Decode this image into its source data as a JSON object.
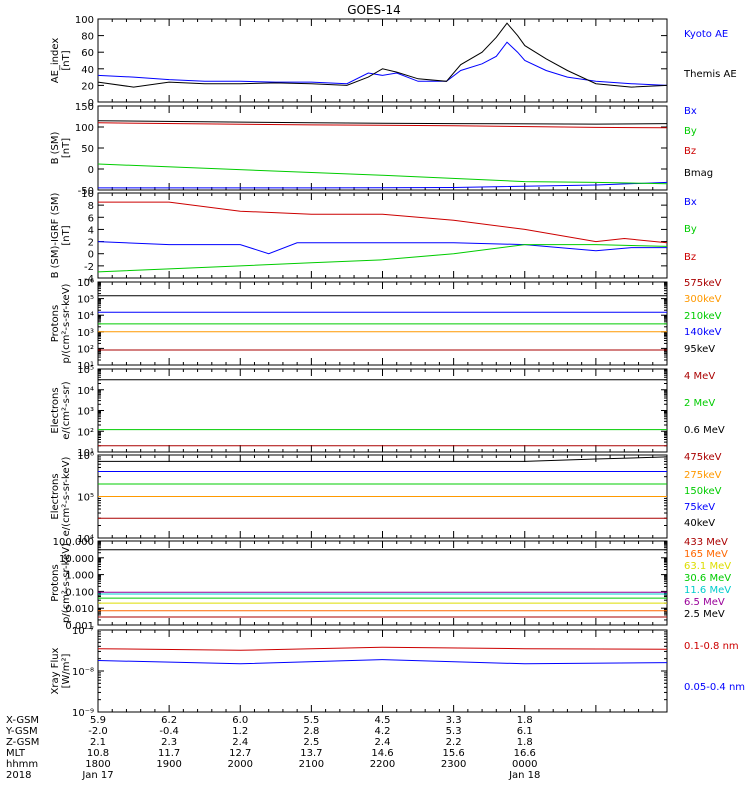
{
  "title": "GOES-14",
  "colors": {
    "black": "#000000",
    "blue": "#0000ff",
    "red": "#cc0000",
    "darkred": "#aa0000",
    "green": "#00cc00",
    "orange": "#ff9900",
    "yellow": "#dddd00",
    "cyan": "#00cccc",
    "purple": "#990099"
  },
  "chart_data": [
    {
      "type": "line",
      "id": "ae",
      "ylabel": [
        "AE_index",
        "[nT]"
      ],
      "ylim": [
        0,
        100
      ],
      "yscale": "linear",
      "yticks": [
        0,
        20,
        40,
        60,
        80,
        100
      ],
      "yticklabels": [
        "0",
        "20",
        "40",
        "60",
        "80",
        "100"
      ],
      "series": [
        {
          "name": "Kyoto AE",
          "color": "#0000ff",
          "points": [
            [
              0,
              32
            ],
            [
              0.5,
              30
            ],
            [
              1,
              27
            ],
            [
              1.5,
              25
            ],
            [
              2,
              25
            ],
            [
              2.5,
              24
            ],
            [
              3,
              24
            ],
            [
              3.5,
              22
            ],
            [
              3.8,
              35
            ],
            [
              4,
              32
            ],
            [
              4.2,
              35
            ],
            [
              4.5,
              25
            ],
            [
              4.9,
              25
            ],
            [
              5.1,
              38
            ],
            [
              5.4,
              46
            ],
            [
              5.6,
              55
            ],
            [
              5.75,
              72
            ],
            [
              5.9,
              60
            ],
            [
              6,
              50
            ],
            [
              6.3,
              38
            ],
            [
              6.6,
              30
            ],
            [
              7,
              25
            ],
            [
              7.5,
              22
            ],
            [
              8,
              20
            ]
          ]
        },
        {
          "name": "Themis AE",
          "color": "#000000",
          "points": [
            [
              0,
              24
            ],
            [
              0.5,
              18
            ],
            [
              1,
              24
            ],
            [
              1.5,
              22
            ],
            [
              2,
              22
            ],
            [
              2.5,
              23
            ],
            [
              3,
              22
            ],
            [
              3.5,
              20
            ],
            [
              3.8,
              30
            ],
            [
              4,
              40
            ],
            [
              4.2,
              36
            ],
            [
              4.5,
              28
            ],
            [
              4.9,
              25
            ],
            [
              5.1,
              45
            ],
            [
              5.4,
              60
            ],
            [
              5.6,
              78
            ],
            [
              5.75,
              95
            ],
            [
              5.9,
              80
            ],
            [
              6,
              68
            ],
            [
              6.3,
              52
            ],
            [
              6.6,
              38
            ],
            [
              7,
              22
            ],
            [
              7.5,
              18
            ],
            [
              8,
              20
            ]
          ]
        }
      ]
    },
    {
      "type": "line",
      "id": "bsm",
      "ylabel": [
        "B (SM)",
        "[nT]"
      ],
      "ylim": [
        -50,
        150
      ],
      "yscale": "linear",
      "yticks": [
        -50,
        0,
        50,
        100,
        150
      ],
      "yticklabels": [
        "-50",
        "0",
        "50",
        "100",
        "150"
      ],
      "series": [
        {
          "name": "Bx",
          "color": "#0000ff",
          "points": [
            [
              0,
              -45
            ],
            [
              3,
              -45
            ],
            [
              5,
              -44
            ],
            [
              7,
              -38
            ],
            [
              8,
              -32
            ]
          ]
        },
        {
          "name": "By",
          "color": "#00cc00",
          "points": [
            [
              0,
              12
            ],
            [
              4,
              -15
            ],
            [
              6,
              -30
            ],
            [
              7,
              -32
            ],
            [
              8,
              -35
            ]
          ]
        },
        {
          "name": "Bz",
          "color": "#cc0000",
          "points": [
            [
              0,
              110
            ],
            [
              3,
              105
            ],
            [
              5,
              103
            ],
            [
              7,
              99
            ],
            [
              8,
              98
            ]
          ]
        },
        {
          "name": "Bmag",
          "color": "#000000",
          "points": [
            [
              0,
              115
            ],
            [
              3,
              110
            ],
            [
              5,
              108
            ],
            [
              7,
              107
            ],
            [
              8,
              108
            ]
          ]
        }
      ]
    },
    {
      "type": "line",
      "id": "bigrf",
      "ylabel": [
        "B (SM)-IGRF (SM)",
        "[nT]"
      ],
      "ylim": [
        -4,
        10
      ],
      "yscale": "linear",
      "yticks": [
        -4,
        -2,
        0,
        2,
        4,
        6,
        8,
        10
      ],
      "yticklabels": [
        "-4",
        "-2",
        "0",
        "2",
        "4",
        "6",
        "8",
        "10"
      ],
      "series": [
        {
          "name": "Bx",
          "color": "#0000ff",
          "points": [
            [
              0,
              2
            ],
            [
              1,
              1.5
            ],
            [
              2,
              1.5
            ],
            [
              2.4,
              0
            ],
            [
              2.8,
              1.8
            ],
            [
              4,
              1.8
            ],
            [
              5,
              1.8
            ],
            [
              6,
              1.5
            ],
            [
              7,
              0.5
            ],
            [
              7.5,
              1
            ],
            [
              8,
              1
            ]
          ]
        },
        {
          "name": "By",
          "color": "#00cc00",
          "points": [
            [
              0,
              -3
            ],
            [
              1,
              -2.5
            ],
            [
              2,
              -2
            ],
            [
              3,
              -1.5
            ],
            [
              4,
              -1
            ],
            [
              5,
              0
            ],
            [
              6,
              1.5
            ],
            [
              7,
              1.5
            ],
            [
              8,
              1.2
            ]
          ]
        },
        {
          "name": "Bz",
          "color": "#cc0000",
          "points": [
            [
              0,
              8.5
            ],
            [
              1,
              8.5
            ],
            [
              2,
              7
            ],
            [
              3,
              6.5
            ],
            [
              4,
              6.5
            ],
            [
              5,
              5.5
            ],
            [
              6,
              4
            ],
            [
              7,
              2
            ],
            [
              7.4,
              2.5
            ],
            [
              8,
              1.8
            ]
          ]
        }
      ]
    },
    {
      "type": "line",
      "id": "protons1",
      "ylabel": [
        "Protons",
        "p/(cm²-s-sr-keV)"
      ],
      "ylim": [
        10,
        1000000
      ],
      "yscale": "log",
      "yticks": [
        10,
        100,
        1000,
        10000,
        100000,
        1000000
      ],
      "yticklabels": [
        "10¹",
        "10²",
        "10³",
        "10⁴",
        "10⁵",
        "10⁶"
      ],
      "series": [
        {
          "name": "575keV",
          "color": "#aa0000",
          "points": [
            [
              0,
              80
            ],
            [
              8,
              80
            ]
          ]
        },
        {
          "name": "300keV",
          "color": "#ff9900",
          "points": [
            [
              0,
              1000
            ],
            [
              8,
              1000
            ]
          ]
        },
        {
          "name": "210keV",
          "color": "#00cc00",
          "points": [
            [
              0,
              3000
            ],
            [
              8,
              3000
            ]
          ]
        },
        {
          "name": "140keV",
          "color": "#0000ff",
          "points": [
            [
              0,
              15000
            ],
            [
              8,
              15000
            ]
          ]
        },
        {
          "name": "95keV",
          "color": "#000000",
          "points": [
            [
              0,
              150000
            ],
            [
              8,
              150000
            ]
          ]
        }
      ]
    },
    {
      "type": "line",
      "id": "electrons1",
      "ylabel": [
        "Electrons",
        "e/(cm²-s-sr)"
      ],
      "ylim": [
        10,
        100000
      ],
      "yscale": "log",
      "yticks": [
        10,
        100,
        1000,
        10000,
        100000
      ],
      "yticklabels": [
        "10¹",
        "10²",
        "10³",
        "10⁴",
        "10⁵"
      ],
      "series": [
        {
          "name": "4 MeV",
          "color": "#aa0000",
          "points": [
            [
              0,
              20
            ],
            [
              8,
              20
            ]
          ]
        },
        {
          "name": "2 MeV",
          "color": "#00cc00",
          "points": [
            [
              0,
              120
            ],
            [
              8,
              120
            ]
          ]
        },
        {
          "name": "0.6 MeV",
          "color": "#000000",
          "points": [
            [
              0,
              30000
            ],
            [
              8,
              30000
            ]
          ]
        }
      ]
    },
    {
      "type": "line",
      "id": "electrons2",
      "ylabel": [
        "Electrons",
        "e/(cm²-s-sr-keV)"
      ],
      "ylim": [
        10000,
        1000000
      ],
      "yscale": "log",
      "yticks": [
        10000,
        100000,
        1000000
      ],
      "yticklabels": [
        "10⁴",
        "10⁵",
        "10⁶"
      ],
      "series": [
        {
          "name": "475keV",
          "color": "#aa0000",
          "points": [
            [
              0,
              30000
            ],
            [
              8,
              30000
            ]
          ]
        },
        {
          "name": "275keV",
          "color": "#ff9900",
          "points": [
            [
              0,
              100000
            ],
            [
              8,
              100000
            ]
          ]
        },
        {
          "name": "150keV",
          "color": "#00cc00",
          "points": [
            [
              0,
              200000
            ],
            [
              8,
              200000
            ]
          ]
        },
        {
          "name": "75keV",
          "color": "#0000ff",
          "points": [
            [
              0,
              400000
            ],
            [
              8,
              400000
            ]
          ]
        },
        {
          "name": "40keV",
          "color": "#000000",
          "points": [
            [
              0,
              700000
            ],
            [
              6,
              700000
            ],
            [
              7,
              800000
            ],
            [
              8,
              900000
            ]
          ]
        }
      ]
    },
    {
      "type": "line",
      "id": "protons2",
      "ylabel": [
        "Protons",
        "p/(cm²-s-sr-keV)"
      ],
      "ylim": [
        0.001,
        100
      ],
      "yscale": "log",
      "yticks": [
        0.001,
        0.01,
        0.1,
        1,
        10,
        100
      ],
      "yticklabels": [
        "0.001",
        "0.010",
        "0.100",
        "1.000",
        "10.000",
        "100.000"
      ],
      "series": [
        {
          "name": "433 MeV",
          "color": "#aa0000",
          "points": [
            [
              0,
              0.003
            ],
            [
              8,
              0.003
            ]
          ]
        },
        {
          "name": "165 MeV",
          "color": "#ff6600",
          "points": [
            [
              0,
              0.007
            ],
            [
              8,
              0.007
            ]
          ]
        },
        {
          "name": "63.1 MeV",
          "color": "#dddd00",
          "points": [
            [
              0,
              0.02
            ],
            [
              8,
              0.02
            ]
          ]
        },
        {
          "name": "30.6 MeV",
          "color": "#00cc00",
          "points": [
            [
              0,
              0.04
            ],
            [
              8,
              0.04
            ]
          ]
        },
        {
          "name": "11.6 MeV",
          "color": "#00cccc",
          "points": [
            [
              0,
              0.07
            ],
            [
              8,
              0.07
            ]
          ]
        },
        {
          "name": "6.5 MeV",
          "color": "#990099",
          "points": [
            [
              0,
              0.09
            ],
            [
              8,
              0.09
            ]
          ]
        },
        {
          "name": "2.5 MeV",
          "color": "#000000",
          "points": [
            [
              0,
              30
            ],
            [
              8,
              30
            ]
          ]
        }
      ]
    },
    {
      "type": "line",
      "id": "xray",
      "ylabel": [
        "Xray Flux",
        "[W/m²]"
      ],
      "ylim": [
        1e-09,
        1e-07
      ],
      "yscale": "log",
      "yticks": [
        1e-09,
        1e-08,
        1e-07
      ],
      "yticklabels": [
        "10⁻⁹",
        "10⁻⁸",
        "10⁻⁷"
      ],
      "series": [
        {
          "name": "0.1-0.8 nm",
          "color": "#cc0000",
          "points": [
            [
              0,
              3.5e-08
            ],
            [
              2,
              3.2e-08
            ],
            [
              4,
              3.8e-08
            ],
            [
              6,
              3.5e-08
            ],
            [
              8,
              3.4e-08
            ]
          ]
        },
        {
          "name": "0.05-0.4 nm",
          "color": "#0000ff",
          "points": [
            [
              0,
              1.8e-08
            ],
            [
              2,
              1.5e-08
            ],
            [
              4,
              1.9e-08
            ],
            [
              6,
              1.5e-08
            ],
            [
              8,
              1.6e-08
            ]
          ]
        }
      ]
    }
  ],
  "xaxis": {
    "xlim": [
      0,
      8
    ],
    "tick_positions": [
      0,
      1,
      2,
      3,
      4,
      5,
      6
    ],
    "minor_ticks_per_major": 4,
    "row_labels": [
      "X-GSM",
      "Y-GSM",
      "Z-GSM",
      "MLT",
      "hhmm",
      "2018"
    ],
    "rows": [
      [
        "5.9",
        "6.2",
        "6.0",
        "5.5",
        "4.5",
        "3.3",
        "1.8"
      ],
      [
        "-2.0",
        "-0.4",
        "1.2",
        "2.8",
        "4.2",
        "5.3",
        "6.1"
      ],
      [
        "2.1",
        "2.3",
        "2.4",
        "2.5",
        "2.4",
        "2.2",
        "1.8"
      ],
      [
        "10.8",
        "11.7",
        "12.7",
        "13.7",
        "14.6",
        "15.6",
        "16.6"
      ],
      [
        "1800",
        "1900",
        "2000",
        "2100",
        "2200",
        "2300",
        "0000"
      ],
      [
        "Jan 17",
        "",
        "",
        "",
        "",
        "",
        "Jan 18"
      ]
    ]
  }
}
